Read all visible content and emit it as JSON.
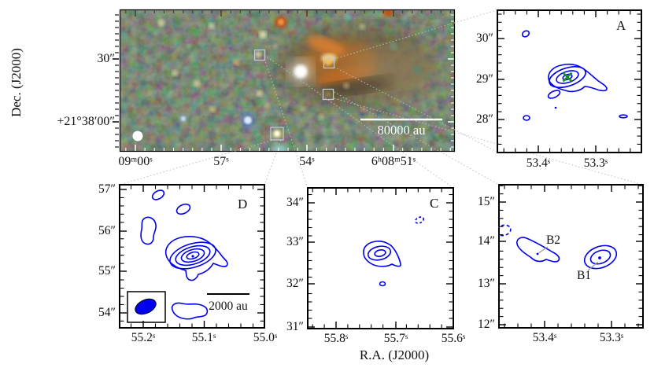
{
  "axes": {
    "dec_label": "Dec. (J2000)",
    "ra_label": "R.A. (J2000)"
  },
  "main_image": {
    "dec_ticks": [
      "30″",
      "+21°38′00″"
    ],
    "ra_ticks": [
      "09ᵐ00ˢ",
      "57ˢ",
      "54ˢ",
      "6ʰ08ᵐ51ˢ"
    ],
    "scalebar_label": "80000 au"
  },
  "panel_a": {
    "label": "A",
    "dec_ticks": [
      "30″",
      "29″",
      "28″"
    ],
    "ra_ticks": [
      "53.4ˢ",
      "53.3ˢ"
    ]
  },
  "panel_d": {
    "label": "D",
    "dec_ticks": [
      "57″",
      "56″",
      "55″",
      "54″"
    ],
    "ra_ticks": [
      "55.2ˢ",
      "55.1ˢ",
      "55.0ˢ"
    ],
    "scalebar_label": "2000 au"
  },
  "panel_c": {
    "label": "C",
    "dec_ticks": [
      "34″",
      "33″",
      "32″",
      "31″"
    ],
    "ra_ticks": [
      "55.8ˢ",
      "55.7ˢ",
      "55.6ˢ"
    ]
  },
  "panel_b": {
    "dec_ticks": [
      "15″",
      "14″",
      "13″",
      "12″"
    ],
    "ra_ticks": [
      "53.4ˢ",
      "53.3ˢ"
    ],
    "sources": [
      {
        "label": "B2"
      },
      {
        "label": "B1"
      }
    ]
  },
  "colors": {
    "contour_blue": "#0000ee",
    "cross_green": "#149414",
    "marker_gray": "#c9c9c9",
    "connector_gray": "#bdbdbd"
  }
}
